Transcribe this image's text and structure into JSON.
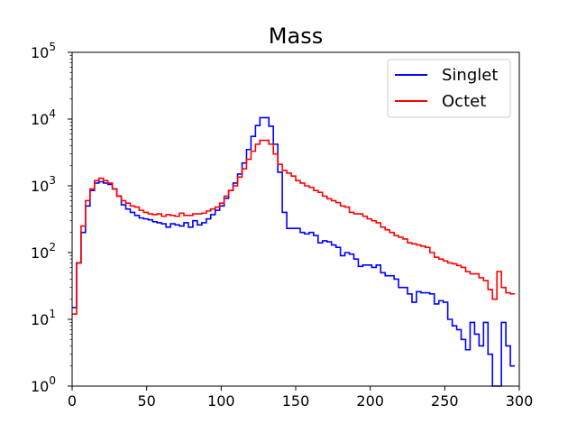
{
  "chart_data": {
    "type": "line",
    "step": true,
    "title": "Mass",
    "xlabel": "",
    "ylabel": "",
    "xlim": [
      0,
      300
    ],
    "ylim": [
      1,
      100000
    ],
    "yscale": "log",
    "grid": false,
    "legend_position": "top-right",
    "x_ticks": [
      "0",
      "50",
      "100",
      "150",
      "200",
      "250",
      "300"
    ],
    "y_ticks": [
      {
        "base": "10",
        "exp": "0"
      },
      {
        "base": "10",
        "exp": "1"
      },
      {
        "base": "10",
        "exp": "2"
      },
      {
        "base": "10",
        "exp": "3"
      },
      {
        "base": "10",
        "exp": "4"
      },
      {
        "base": "10",
        "exp": "5"
      }
    ],
    "bin_width": 3,
    "bin_edges_start": 0,
    "series": [
      {
        "name": "Singlet",
        "color": "#0000ff",
        "values": [
          15,
          70,
          200,
          500,
          850,
          1100,
          1150,
          1100,
          1050,
          900,
          700,
          520,
          450,
          400,
          360,
          330,
          320,
          310,
          290,
          280,
          270,
          240,
          270,
          260,
          250,
          280,
          240,
          300,
          260,
          280,
          320,
          370,
          430,
          500,
          650,
          850,
          1100,
          1500,
          2200,
          3500,
          5500,
          8000,
          10500,
          10500,
          7800,
          4200,
          1600,
          400,
          230,
          230,
          230,
          200,
          190,
          200,
          180,
          140,
          150,
          145,
          130,
          120,
          90,
          100,
          95,
          80,
          62,
          65,
          65,
          60,
          65,
          50,
          45,
          45,
          40,
          30,
          30,
          24,
          18,
          26,
          25,
          25,
          24,
          17,
          19,
          18,
          10,
          8,
          7,
          5,
          3.5,
          9,
          6,
          4,
          9,
          3,
          1,
          0.5,
          9,
          4,
          2
        ]
      },
      {
        "name": "Octet",
        "color": "#ff0000",
        "values": [
          12,
          70,
          250,
          600,
          900,
          1200,
          1300,
          1200,
          1100,
          900,
          700,
          600,
          550,
          500,
          480,
          430,
          400,
          380,
          370,
          380,
          350,
          370,
          360,
          350,
          390,
          360,
          360,
          380,
          380,
          390,
          420,
          450,
          480,
          550,
          700,
          850,
          1000,
          1350,
          1800,
          2500,
          3300,
          4200,
          4800,
          4800,
          4200,
          3000,
          2100,
          1700,
          1550,
          1400,
          1200,
          1100,
          1000,
          950,
          850,
          800,
          700,
          640,
          600,
          560,
          500,
          480,
          400,
          380,
          380,
          350,
          320,
          300,
          280,
          240,
          220,
          200,
          180,
          170,
          160,
          140,
          135,
          130,
          125,
          120,
          100,
          85,
          80,
          75,
          70,
          68,
          64,
          60,
          52,
          48,
          48,
          42,
          38,
          28,
          20,
          52,
          30,
          25,
          24
        ]
      }
    ]
  }
}
